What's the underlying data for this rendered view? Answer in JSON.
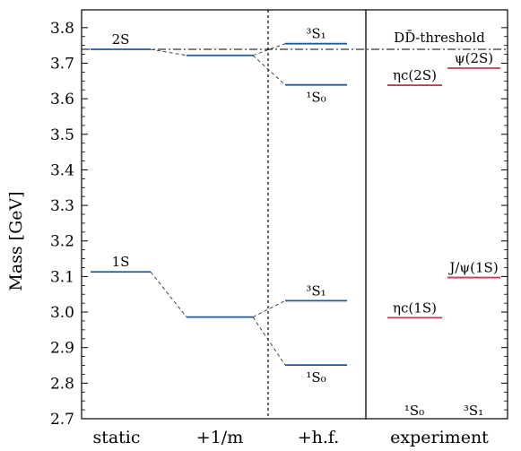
{
  "chart_data": {
    "type": "energy-level-diagram",
    "ylabel": "Mass [GeV]",
    "ylim": [
      2.7,
      3.85
    ],
    "yticks": [
      "2.7",
      "2.8",
      "2.9",
      "3.0",
      "3.1",
      "3.2",
      "3.3",
      "3.4",
      "3.5",
      "3.6",
      "3.7",
      "3.8"
    ],
    "categories": [
      "static",
      "+1/m",
      "+h.f.",
      "experiment"
    ],
    "threshold": {
      "label": "DD̄-threshold",
      "value": 3.739
    },
    "theory_levels": [
      {
        "id": "static-2s",
        "column": "static",
        "value": 3.739,
        "label": "2S"
      },
      {
        "id": "static-1s",
        "column": "static",
        "value": 3.113,
        "label": "1S"
      },
      {
        "id": "m-2s",
        "column": "+1/m",
        "value": 3.722,
        "label": ""
      },
      {
        "id": "m-1s",
        "column": "+1/m",
        "value": 2.986,
        "label": ""
      },
      {
        "id": "hf-3s1-2s",
        "column": "+h.f.",
        "value": 3.755,
        "label": "³S₁"
      },
      {
        "id": "hf-1s0-2s",
        "column": "+h.f.",
        "value": 3.639,
        "label": "¹S₀"
      },
      {
        "id": "hf-3s1-1s",
        "column": "+h.f.",
        "value": 3.032,
        "label": "³S₁"
      },
      {
        "id": "hf-1s0-1s",
        "column": "+h.f.",
        "value": 2.851,
        "label": "¹S₀"
      }
    ],
    "experiment_levels": [
      {
        "id": "etac2s",
        "spin": "1S0",
        "value": 3.638,
        "label": "ηc(2S)"
      },
      {
        "id": "psi2s",
        "spin": "3S1",
        "value": 3.686,
        "label": "ψ(2S)"
      },
      {
        "id": "etac1s",
        "spin": "1S0",
        "value": 2.984,
        "label": "ηc(1S)"
      },
      {
        "id": "jpsi",
        "spin": "3S1",
        "value": 3.097,
        "label": "J/ψ(1S)"
      }
    ],
    "experiment_columns": {
      "1S0": "¹S₀",
      "3S1": "³S₁"
    },
    "connectors": [
      [
        "static-2s",
        "m-2s"
      ],
      [
        "m-2s",
        "hf-3s1-2s"
      ],
      [
        "m-2s",
        "hf-1s0-2s"
      ],
      [
        "static-1s",
        "m-1s"
      ],
      [
        "m-1s",
        "hf-3s1-1s"
      ],
      [
        "m-1s",
        "hf-1s0-1s"
      ]
    ],
    "colors": {
      "theory": "#1f5a96",
      "experiment": "#c23b5a",
      "axis": "#000000"
    }
  }
}
